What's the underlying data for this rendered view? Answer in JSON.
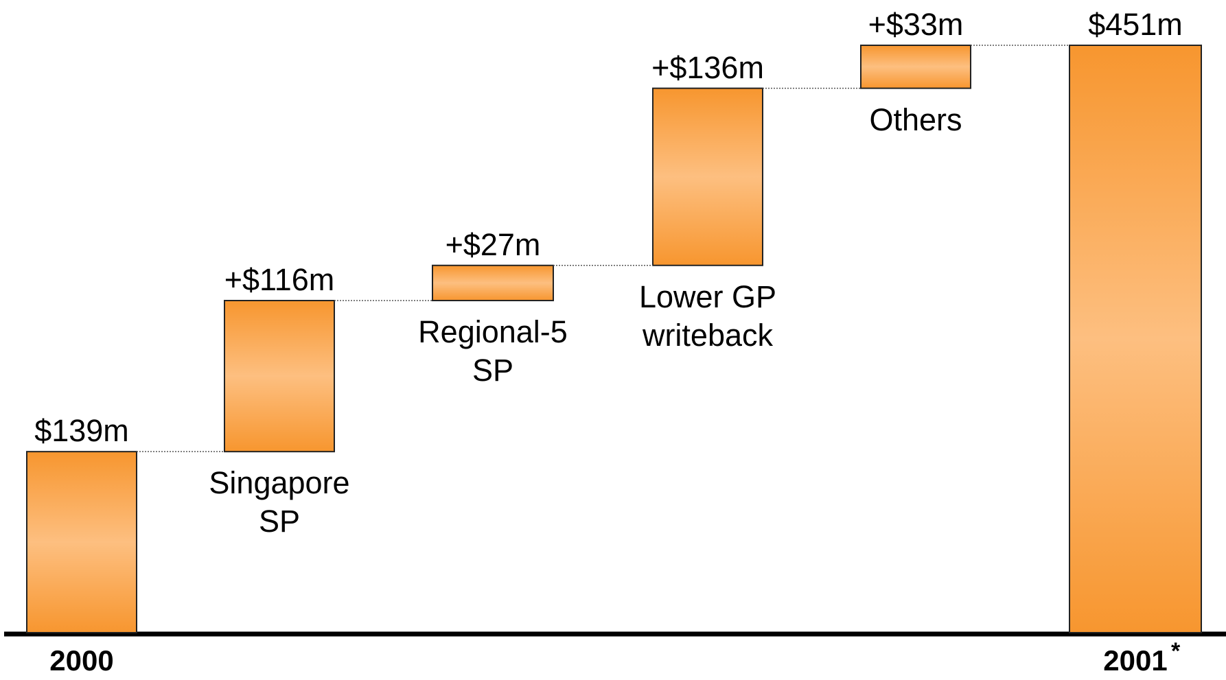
{
  "chart_data": {
    "type": "waterfall",
    "categories": [
      "2000",
      "Singapore\nSP",
      "Regional-5\nSP",
      "Lower GP\nwriteback",
      "Others",
      "2001"
    ],
    "values": [
      139,
      116,
      27,
      136,
      33,
      451
    ],
    "value_labels": [
      "$139m",
      "+$116m",
      "+$27m",
      "+$136m",
      "+$33m",
      "$451m"
    ],
    "is_total": [
      true,
      false,
      false,
      false,
      false,
      true
    ],
    "annotation": "*",
    "color": "#f7962f",
    "color_light": "#fdbf80"
  }
}
